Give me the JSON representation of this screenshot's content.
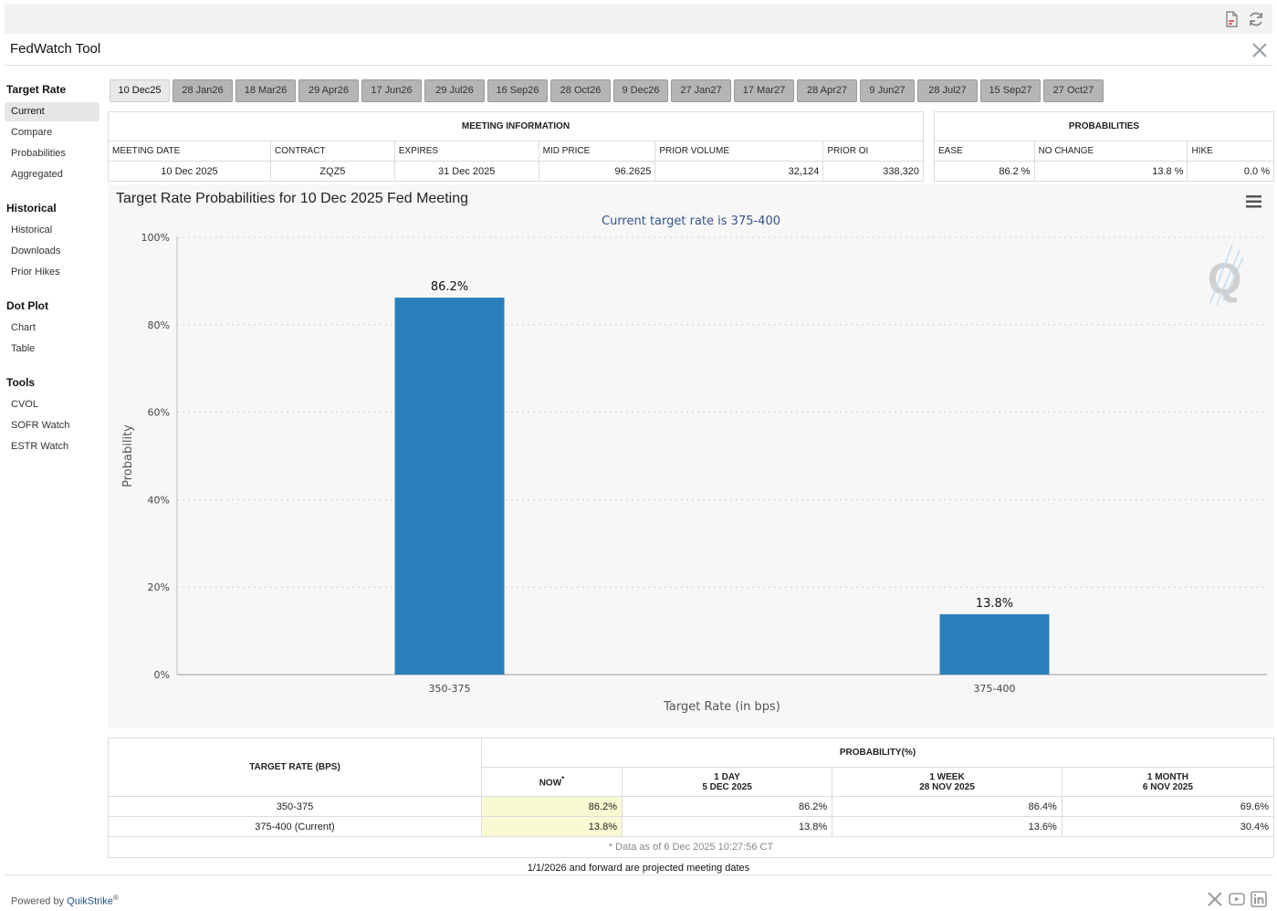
{
  "app": {
    "title": "FedWatch Tool"
  },
  "toolbar_icons": [
    "pdf-icon",
    "refresh-icon"
  ],
  "sidebar": [
    {
      "heading": "Target Rate",
      "items": [
        "Current",
        "Compare",
        "Probabilities",
        "Aggregated"
      ]
    },
    {
      "heading": "Historical",
      "items": [
        "Historical",
        "Downloads",
        "Prior Hikes"
      ]
    },
    {
      "heading": "Dot Plot",
      "items": [
        "Chart",
        "Table"
      ]
    },
    {
      "heading": "Tools",
      "items": [
        "CVOL",
        "SOFR Watch",
        "ESTR Watch"
      ]
    }
  ],
  "active_sidebar_item": "Current",
  "tabs": [
    "10 Dec25",
    "28 Jan26",
    "18 Mar26",
    "29 Apr26",
    "17 Jun26",
    "29 Jul26",
    "16 Sep26",
    "28 Oct26",
    "9 Dec26",
    "27 Jan27",
    "17 Mar27",
    "28 Apr27",
    "9 Jun27",
    "28 Jul27",
    "15 Sep27",
    "27 Oct27"
  ],
  "active_tab": "10 Dec25",
  "meeting_info": {
    "heading": "MEETING INFORMATION",
    "columns": [
      "MEETING DATE",
      "CONTRACT",
      "EXPIRES",
      "MID PRICE",
      "PRIOR VOLUME",
      "PRIOR OI"
    ],
    "row": [
      "10 Dec 2025",
      "ZQZ5",
      "31 Dec 2025",
      "96.2625",
      "32,124",
      "338,320"
    ]
  },
  "probabilities": {
    "heading": "PROBABILITIES",
    "columns": [
      "EASE",
      "NO CHANGE",
      "HIKE"
    ],
    "row": [
      "86.2 %",
      "13.8 %",
      "0.0 %"
    ]
  },
  "chart": {
    "title": "Target Rate Probabilities for 10 Dec 2025 Fed Meeting"
  },
  "chart_data": {
    "type": "bar",
    "subtitle": "Current target rate is 375-400",
    "categories": [
      "350-375",
      "375-400"
    ],
    "values": [
      86.2,
      13.8
    ],
    "data_labels": [
      "86.2%",
      "13.8%"
    ],
    "xlabel": "Target Rate (in bps)",
    "ylabel": "Probability",
    "ylim": [
      0,
      100
    ],
    "yticks": [
      "0%",
      "20%",
      "40%",
      "60%",
      "80%",
      "100%"
    ],
    "ytick_values": [
      0,
      20,
      40,
      60,
      80,
      100
    ],
    "grid": true,
    "bar_color": "#2a7fba"
  },
  "lower_table": {
    "target_rate_header": "TARGET RATE (BPS)",
    "prob_header": "PROBABILITY(%)",
    "now_header": "NOW",
    "now_mark": "*",
    "periods": [
      {
        "label": "1 DAY",
        "date": "5 DEC 2025"
      },
      {
        "label": "1 WEEK",
        "date": "28 NOV 2025"
      },
      {
        "label": "1 MONTH",
        "date": "6 NOV 2025"
      }
    ],
    "rows": [
      {
        "rate": "350-375",
        "values": [
          "86.2%",
          "86.2%",
          "86.4%",
          "69.6%"
        ]
      },
      {
        "rate": "375-400 (Current)",
        "values": [
          "13.8%",
          "13.8%",
          "13.6%",
          "30.4%"
        ]
      }
    ],
    "footnote": "* Data as of 6 Dec 2025 10:27:56 CT"
  },
  "projection_note": "1/1/2026 and forward are projected meeting dates",
  "footer": {
    "powered_prefix": "Powered by ",
    "brand": "QuikStrike",
    "reg": "®",
    "social": [
      "x-icon",
      "youtube-icon",
      "linkedin-icon"
    ]
  }
}
